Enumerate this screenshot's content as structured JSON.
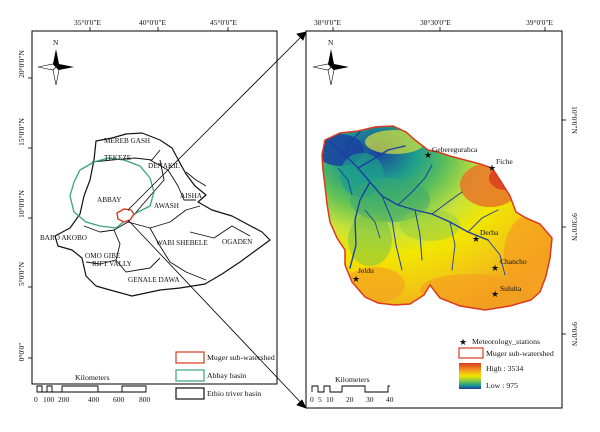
{
  "left_map": {
    "lon_ticks": [
      "35°0'0\"E",
      "40°0'0\"E",
      "45°0'0\"E"
    ],
    "lat_ticks": [
      "20°0'0\"N",
      "15°0'0\"N",
      "10°0'0\"N",
      "5°0'0\"N",
      "0°0'0\""
    ],
    "north": "N",
    "basins": [
      "MEREB GASH",
      "TEKEZE",
      "DENAKIL",
      "ABBAY",
      "AISHA",
      "AWASH",
      "BARO AKOBO",
      "WABI SHEBELE",
      "OGADEN",
      "OMO GIBE",
      "RIFT VALLY",
      "GENALE DAWA"
    ],
    "scale": {
      "title": "Kilometers",
      "ticks": [
        "0",
        "100",
        "200",
        "400",
        "600",
        "800"
      ]
    },
    "legend": [
      {
        "label": "Muger sub-watershed",
        "color": "#d93a20"
      },
      {
        "label": "Abbay basin",
        "color": "#3aa37a"
      },
      {
        "label": "Ethio triver basin",
        "color": "#111111"
      }
    ]
  },
  "right_map": {
    "lon_ticks": [
      "38°0'0\"E",
      "38°30'0\"E",
      "39°0'0\"E"
    ],
    "lat_ticks": [
      "10°0'0\"N",
      "9°30'0\"N",
      "9°0'0\"N"
    ],
    "north": "N",
    "stations": [
      "Geberegurahca",
      "Fiche",
      "Derba",
      "Chancho",
      "Sululta",
      "Jeldu"
    ],
    "scale": {
      "title": "Kilometers",
      "ticks": [
        "0",
        "5",
        "10",
        "20",
        "30",
        "40"
      ]
    },
    "legend": {
      "stations_label": "Meteorology_stations",
      "watershed_label": "Muger sub-watershed",
      "high_label": "High : 3534",
      "low_label": "Low : 975"
    }
  },
  "colors": {
    "watershed": "#d93a20",
    "abbay": "#3aa37a",
    "high": "#d93a20",
    "mid": "#f2e600",
    "low": "#1a3fa0"
  }
}
